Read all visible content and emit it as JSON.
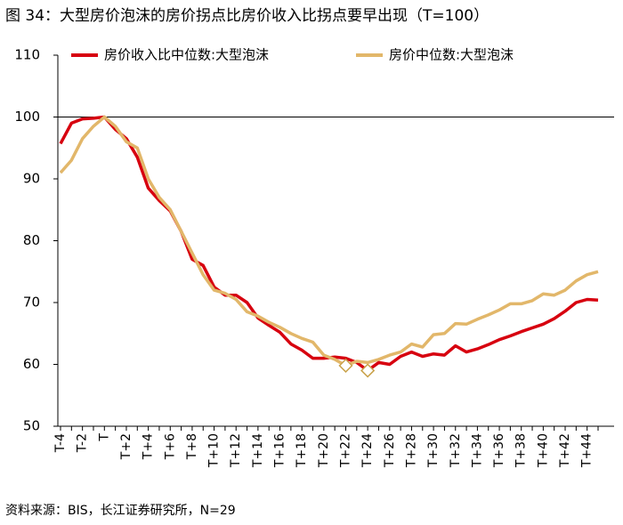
{
  "chart_data": {
    "type": "line",
    "title": "图 34：大型房价泡沫的房价拐点比房价收入比拐点要早出现（T=100）",
    "source": "资料来源：BIS，长江证券研究所，N=29",
    "categories": [
      "T-4",
      null,
      "T-2",
      null,
      "T",
      null,
      "T+2",
      null,
      "T+4",
      null,
      "T+6",
      null,
      "T+8",
      null,
      "T+10",
      null,
      "T+12",
      null,
      "T+14",
      null,
      "T+16",
      null,
      "T+18",
      null,
      "T+20",
      null,
      "T+22",
      null,
      "T+24",
      null,
      "T+26",
      null,
      "T+28",
      null,
      "T+30",
      null,
      "T+32",
      null,
      "T+34",
      null,
      "T+36",
      null,
      "T+38",
      null,
      "T+40",
      null,
      "T+42",
      null,
      "T+44",
      null
    ],
    "series": [
      {
        "name": "房价收入比中位数:大型泡沫",
        "color": "#d7000f",
        "marker_index": 28,
        "values": [
          95.7,
          99,
          99.7,
          99.8,
          100,
          98,
          96.5,
          93.5,
          88.5,
          86.5,
          84.8,
          81.5,
          77,
          76,
          72.5,
          71.2,
          71.2,
          70,
          67.5,
          66.3,
          65.2,
          63.3,
          62.3,
          61,
          61,
          61.2,
          61,
          60.3,
          59,
          60.3,
          60,
          61.3,
          62,
          61.3,
          61.7,
          61.5,
          63,
          62,
          62.5,
          63.2,
          64,
          64.6,
          65.3,
          65.9,
          66.5,
          67.4,
          68.6,
          70,
          70.5,
          70.4
        ]
      },
      {
        "name": "房价中位数:大型泡沫",
        "color": "#e2b76a",
        "marker_index": 26,
        "values": [
          91,
          93,
          96.5,
          98.5,
          100,
          98.5,
          96,
          95,
          90,
          87,
          85,
          81.5,
          78,
          74.5,
          72,
          71.5,
          70.5,
          68.5,
          67.8,
          66.8,
          66,
          65,
          64.2,
          63.6,
          61.5,
          60.8,
          59.8,
          60.5,
          60.3,
          60.8,
          61.5,
          62,
          63.3,
          62.8,
          64.8,
          65,
          66.6,
          66.5,
          67.3,
          68,
          68.8,
          69.8,
          69.8,
          70.3,
          71.4,
          71.2,
          72,
          73.5,
          74.5,
          75
        ]
      }
    ],
    "reference_line": 100,
    "ylim": [
      50,
      110
    ],
    "yticks": [
      50,
      60,
      70,
      80,
      90,
      100,
      110
    ],
    "legend": "top"
  }
}
